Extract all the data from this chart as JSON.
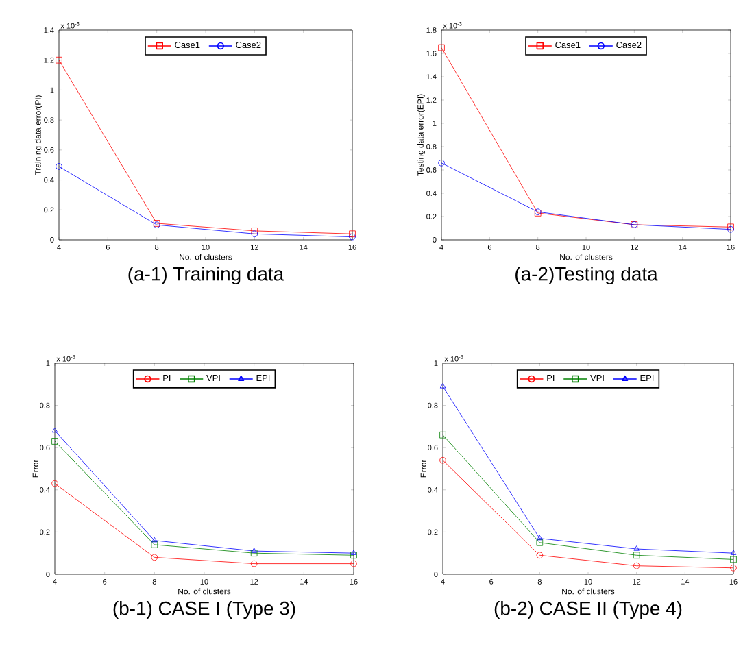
{
  "chart_data": [
    {
      "type": "line",
      "title": "(a-1) Training data",
      "xlabel": "No. of clusters",
      "ylabel": "Training data error(PI)",
      "annotations": [
        "x 10$^{-3}$"
      ],
      "x": [
        4,
        8,
        12,
        16
      ],
      "xlim": [
        4,
        16
      ],
      "xticks": [
        4,
        6,
        8,
        10,
        12,
        14,
        16
      ],
      "ylim": [
        0,
        1.4
      ],
      "yticks": [
        0,
        0.2,
        0.4,
        0.6,
        0.8,
        1,
        1.2,
        1.4
      ],
      "legend": "top",
      "line_style": "solid",
      "grid": false,
      "series": [
        {
          "name": "Case1",
          "color": "#ff0000",
          "marker": "square",
          "values": [
            1.2,
            0.11,
            0.06,
            0.04
          ]
        },
        {
          "name": "Case2",
          "color": "#0000ff",
          "marker": "circle",
          "values": [
            0.49,
            0.1,
            0.04,
            0.02
          ]
        }
      ]
    },
    {
      "type": "line",
      "title": "(a-2)Testing data",
      "xlabel": "No. of clusters",
      "ylabel": "Testing data error(EPI)",
      "annotations": [
        "x 10$^{-3}$"
      ],
      "x": [
        4,
        8,
        12,
        16
      ],
      "xlim": [
        4,
        16
      ],
      "xticks": [
        4,
        6,
        8,
        10,
        12,
        14,
        16
      ],
      "ylim": [
        0,
        1.8
      ],
      "yticks": [
        0,
        0.2,
        0.4,
        0.6,
        0.8,
        1,
        1.2,
        1.4,
        1.6,
        1.8
      ],
      "legend": "top",
      "line_style": "solid",
      "grid": false,
      "series": [
        {
          "name": "Case1",
          "color": "#ff0000",
          "marker": "square",
          "values": [
            1.65,
            0.23,
            0.13,
            0.11
          ]
        },
        {
          "name": "Case2",
          "color": "#0000ff",
          "marker": "circle",
          "values": [
            0.66,
            0.24,
            0.13,
            0.09
          ]
        }
      ]
    },
    {
      "type": "line",
      "title": "(b-1) CASE I (Type 3)",
      "xlabel": "No. of clusters",
      "ylabel": "Error",
      "annotations": [
        "x 10$^{-3}$"
      ],
      "x": [
        4,
        8,
        12,
        16
      ],
      "xlim": [
        4,
        16
      ],
      "xticks": [
        4,
        6,
        8,
        10,
        12,
        14,
        16
      ],
      "ylim": [
        0,
        1
      ],
      "yticks": [
        0,
        0.2,
        0.4,
        0.6,
        0.8,
        1
      ],
      "legend": "top",
      "line_style": "solid",
      "grid": false,
      "series": [
        {
          "name": "PI",
          "color": "#ff0000",
          "marker": "circle",
          "values": [
            0.43,
            0.08,
            0.05,
            0.05
          ]
        },
        {
          "name": "VPI",
          "color": "#008000",
          "marker": "square",
          "values": [
            0.63,
            0.14,
            0.1,
            0.09
          ]
        },
        {
          "name": "EPI",
          "color": "#0000ff",
          "marker": "triangle",
          "values": [
            0.68,
            0.16,
            0.11,
            0.1
          ]
        }
      ]
    },
    {
      "type": "line",
      "title": "(b-2) CASE II (Type 4)",
      "xlabel": "No. of clusters",
      "ylabel": "Error",
      "annotations": [
        "x 10$^{-3}$"
      ],
      "x": [
        4,
        8,
        12,
        16
      ],
      "xlim": [
        4,
        16
      ],
      "xticks": [
        4,
        6,
        8,
        10,
        12,
        14,
        16
      ],
      "ylim": [
        0,
        1
      ],
      "yticks": [
        0,
        0.2,
        0.4,
        0.6,
        0.8,
        1
      ],
      "legend": "top",
      "line_style": "solid",
      "grid": false,
      "series": [
        {
          "name": "PI",
          "color": "#ff0000",
          "marker": "circle",
          "values": [
            0.54,
            0.09,
            0.04,
            0.03
          ]
        },
        {
          "name": "VPI",
          "color": "#008000",
          "marker": "square",
          "values": [
            0.66,
            0.15,
            0.09,
            0.07
          ]
        },
        {
          "name": "EPI",
          "color": "#0000ff",
          "marker": "triangle",
          "values": [
            0.89,
            0.17,
            0.12,
            0.1
          ]
        }
      ]
    }
  ]
}
